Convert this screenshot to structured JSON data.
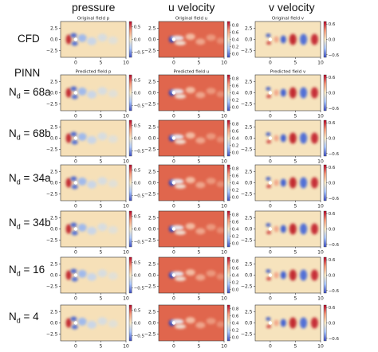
{
  "columns": [
    "pressure",
    "u velocity",
    "v velocity"
  ],
  "rows": [
    {
      "label": "CFD",
      "sub": "",
      "suffix": ""
    },
    {
      "label": "N",
      "sub": "d",
      "suffix": " = 68a"
    },
    {
      "label": "N",
      "sub": "d",
      "suffix": " = 68b"
    },
    {
      "label": "N",
      "sub": "d",
      "suffix": " = 34a"
    },
    {
      "label": "N",
      "sub": "d",
      "suffix": " = 34b"
    },
    {
      "label": "N",
      "sub": "d",
      "suffix": " = 16"
    },
    {
      "label": "N",
      "sub": "d",
      "suffix": " = 4"
    }
  ],
  "pinn_label": "PINN",
  "panel_titles": {
    "original": [
      "Original field p",
      "Original field u",
      "Original field v"
    ],
    "predicted": [
      "Predicted field p",
      "Predicted field u",
      "Predicted field v"
    ]
  },
  "chart_data": {
    "type": "heatmap",
    "xticks": [
      "0",
      "5",
      "10"
    ],
    "yticks": [
      "2.5",
      "0.0",
      "−2.5"
    ],
    "xlim": [
      -3,
      10
    ],
    "ylim": [
      -4,
      4
    ],
    "colorbars": [
      {
        "field": "p",
        "ticks": [
          "0.5",
          "0.0",
          "−0.5"
        ],
        "range": [
          -0.7,
          0.7
        ]
      },
      {
        "field": "u",
        "ticks": [
          "0.8",
          "0.6",
          "0.4",
          "0.2",
          "0.0"
        ],
        "range": [
          -0.1,
          0.9
        ]
      },
      {
        "field": "v",
        "ticks": [
          "0.6",
          "0.0",
          "−0.6"
        ],
        "range": [
          -0.7,
          0.7
        ]
      }
    ],
    "colormap": [
      "#3b4cc0",
      "#aac7fd",
      "#f7e9c6",
      "#f49a7b",
      "#b40426"
    ]
  }
}
